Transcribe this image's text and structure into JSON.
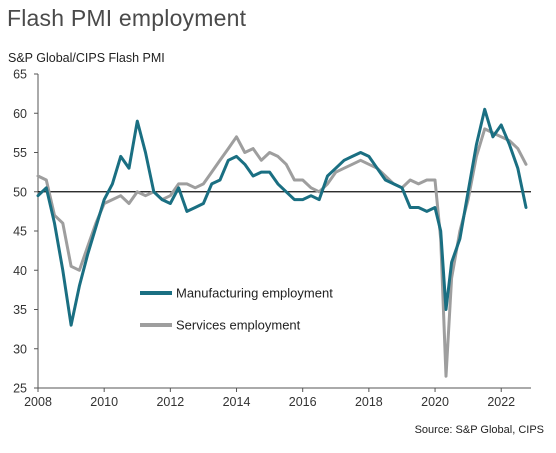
{
  "title": "Flash PMI employment",
  "source": "Source: S&P Global, CIPS",
  "chart_data": {
    "type": "line",
    "title": "Flash PMI employment",
    "ylabel": "S&P Global/CIPS Flash PMI",
    "xlabel": "",
    "ylim": [
      25,
      65
    ],
    "xlim": [
      2008,
      2022.9
    ],
    "yticks": [
      25,
      30,
      35,
      40,
      45,
      50,
      55,
      60,
      65
    ],
    "xticks": [
      2008,
      2010,
      2012,
      2014,
      2016,
      2018,
      2020,
      2022
    ],
    "reference_line": 50,
    "legend_placement": "lower-left",
    "series": [
      {
        "name": "Manufacturing employment",
        "color": "#1a6f82",
        "x": [
          2008.0,
          2008.25,
          2008.5,
          2008.75,
          2009.0,
          2009.25,
          2009.5,
          2009.75,
          2010.0,
          2010.25,
          2010.5,
          2010.75,
          2011.0,
          2011.25,
          2011.5,
          2011.75,
          2012.0,
          2012.25,
          2012.5,
          2012.75,
          2013.0,
          2013.25,
          2013.5,
          2013.75,
          2014.0,
          2014.25,
          2014.5,
          2014.75,
          2015.0,
          2015.25,
          2015.5,
          2015.75,
          2016.0,
          2016.25,
          2016.5,
          2016.75,
          2017.0,
          2017.25,
          2017.5,
          2017.75,
          2018.0,
          2018.25,
          2018.5,
          2018.75,
          2019.0,
          2019.25,
          2019.5,
          2019.75,
          2020.0,
          2020.17,
          2020.33,
          2020.5,
          2020.75,
          2021.0,
          2021.25,
          2021.5,
          2021.75,
          2022.0,
          2022.25,
          2022.5,
          2022.75
        ],
        "values": [
          49.5,
          50.5,
          46.0,
          40.0,
          33.0,
          38.0,
          42.0,
          45.5,
          49.0,
          51.0,
          54.5,
          53.0,
          59.0,
          55.0,
          50.0,
          49.0,
          48.5,
          50.5,
          47.5,
          48.0,
          48.5,
          51.0,
          51.5,
          54.0,
          54.5,
          53.5,
          52.0,
          52.5,
          52.5,
          51.0,
          50.0,
          49.0,
          49.0,
          49.5,
          49.0,
          52.0,
          53.0,
          54.0,
          54.5,
          55.0,
          54.5,
          53.0,
          51.5,
          51.0,
          50.5,
          48.0,
          48.0,
          47.5,
          48.0,
          45.0,
          35.0,
          41.0,
          44.0,
          50.0,
          56.0,
          60.5,
          57.0,
          58.5,
          56.0,
          53.0,
          48.0
        ]
      },
      {
        "name": "Services employment",
        "color": "#9e9e9e",
        "x": [
          2008.0,
          2008.25,
          2008.5,
          2008.75,
          2009.0,
          2009.25,
          2009.5,
          2009.75,
          2010.0,
          2010.25,
          2010.5,
          2010.75,
          2011.0,
          2011.25,
          2011.5,
          2011.75,
          2012.0,
          2012.25,
          2012.5,
          2012.75,
          2013.0,
          2013.25,
          2013.5,
          2013.75,
          2014.0,
          2014.25,
          2014.5,
          2014.75,
          2015.0,
          2015.25,
          2015.5,
          2015.75,
          2016.0,
          2016.25,
          2016.5,
          2016.75,
          2017.0,
          2017.25,
          2017.5,
          2017.75,
          2018.0,
          2018.25,
          2018.5,
          2018.75,
          2019.0,
          2019.25,
          2019.5,
          2019.75,
          2020.0,
          2020.17,
          2020.33,
          2020.5,
          2020.75,
          2021.0,
          2021.25,
          2021.5,
          2021.75,
          2022.0,
          2022.25,
          2022.5,
          2022.75
        ],
        "values": [
          52.0,
          51.5,
          47.0,
          46.0,
          40.5,
          40.0,
          43.0,
          46.0,
          48.5,
          49.0,
          49.5,
          48.5,
          50.0,
          49.5,
          50.0,
          49.0,
          49.5,
          51.0,
          51.0,
          50.5,
          51.0,
          52.5,
          54.0,
          55.5,
          57.0,
          55.0,
          55.5,
          54.0,
          55.0,
          54.5,
          53.5,
          51.5,
          51.5,
          50.5,
          50.0,
          51.0,
          52.5,
          53.0,
          53.5,
          54.0,
          53.5,
          53.0,
          52.0,
          51.0,
          50.5,
          51.5,
          51.0,
          51.5,
          51.5,
          44.0,
          26.5,
          39.0,
          45.0,
          49.0,
          54.5,
          58.0,
          57.5,
          57.0,
          56.5,
          55.5,
          53.5
        ]
      }
    ]
  }
}
